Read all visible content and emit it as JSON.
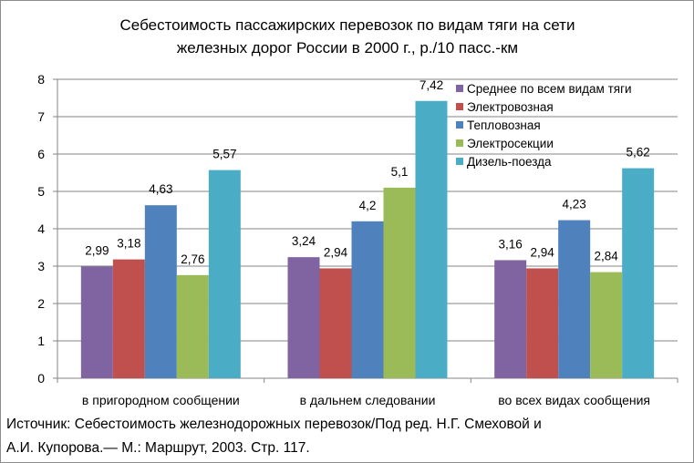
{
  "chart_data": {
    "type": "bar",
    "title": [
      "Себестоимость пассажирских перевозок по видам тяги на сети",
      "железных дорог России в 2000 г., р./10 пасс.-км"
    ],
    "categories": [
      "в пригородном сообщении",
      "в дальнем следовании",
      "во всех видах сообщения"
    ],
    "series": [
      {
        "name": "Среднее по всем видам тяги",
        "color": "#8064a2",
        "values": [
          2.99,
          3.24,
          3.16
        ],
        "labels": [
          "2,99",
          "3,24",
          "3,16"
        ]
      },
      {
        "name": "Электровозная",
        "color": "#c0504d",
        "values": [
          3.18,
          2.94,
          2.94
        ],
        "labels": [
          "3,18",
          "2,94",
          "2,94"
        ]
      },
      {
        "name": "Тепловозная",
        "color": "#4f81bd",
        "values": [
          4.63,
          4.2,
          4.23
        ],
        "labels": [
          "4,63",
          "4,2",
          "4,23"
        ]
      },
      {
        "name": "Электросекции",
        "color": "#9bbb59",
        "values": [
          2.76,
          5.1,
          2.84
        ],
        "labels": [
          "2,76",
          "5,1",
          "2,84"
        ]
      },
      {
        "name": "Дизель-поезда",
        "color": "#4bacc6",
        "values": [
          5.57,
          7.42,
          5.62
        ],
        "labels": [
          "5,57",
          "7,42",
          "5,62"
        ]
      }
    ],
    "ylim": [
      0,
      8
    ],
    "yticks": [
      "0",
      "1",
      "2",
      "3",
      "4",
      "5",
      "6",
      "7",
      "8"
    ],
    "grid": "horizontal",
    "legend_position": "top-right"
  },
  "source": {
    "line1": "Источник: Себестоимость  железнодорожных перевозок/Под  ред. Н.Г. Смеховой и",
    "line2": "А.И. Купорова.— М.: Маршрут, 2003. Стр. 117."
  }
}
